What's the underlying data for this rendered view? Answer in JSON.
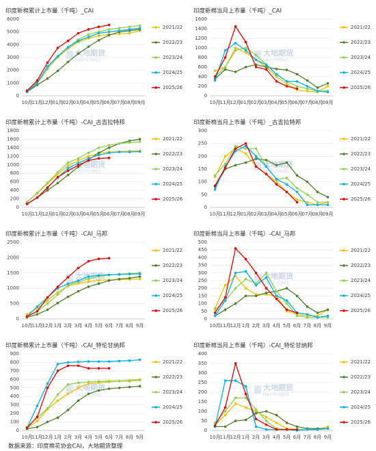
{
  "chart_data": [
    {
      "type": "line",
      "title": "印度新棉累计上市量（千吨）_CAI",
      "categories": [
        "10月",
        "11月",
        "12月",
        "01月",
        "02月",
        "03月",
        "04月",
        "05月",
        "06月",
        "07月",
        "08月",
        "09月"
      ],
      "ylim": [
        0,
        6000
      ],
      "yticks": [
        0,
        1000,
        2000,
        3000,
        4000,
        5000,
        6000
      ],
      "grid": true,
      "series": [
        {
          "name": "2021/22",
          "color": "#f0c000",
          "values": [
            400,
            1100,
            2200,
            3000,
            3700,
            4200,
            4500,
            4700,
            4800,
            4850,
            4900,
            5100
          ]
        },
        {
          "name": "2022/23",
          "color": "#4f7f2a",
          "values": [
            300,
            850,
            1350,
            1950,
            2650,
            3300,
            3850,
            4350,
            4750,
            5000,
            5100,
            5200
          ]
        },
        {
          "name": "2023/24",
          "color": "#92d050",
          "values": [
            400,
            1000,
            2100,
            3100,
            3800,
            4400,
            4800,
            5000,
            5200,
            5300,
            5400,
            5500
          ]
        },
        {
          "name": "2024/25",
          "color": "#00b0f0",
          "values": [
            300,
            1000,
            2300,
            3100,
            3800,
            4300,
            4600,
            4900,
            5000,
            5100,
            5200,
            5300
          ]
        },
        {
          "name": "2025/26",
          "color": "#e00000",
          "values": [
            400,
            1200,
            2600,
            3750,
            4300,
            4900,
            5200,
            5400,
            5550,
            null,
            null,
            null
          ]
        }
      ]
    },
    {
      "type": "line",
      "title": "印度新棉当月上市量（千吨）_CAI",
      "categories": [
        "10月",
        "11月",
        "12月",
        "01月",
        "02月",
        "03月",
        "04月",
        "05月",
        "06月",
        "07月",
        "08月",
        "09月"
      ],
      "ylim": [
        0,
        1600
      ],
      "yticks": [
        0,
        200,
        400,
        600,
        800,
        1000,
        1200,
        1400,
        1600
      ],
      "grid": true,
      "series": [
        {
          "name": "2021/22",
          "color": "#f0c000",
          "values": [
            520,
            600,
            1000,
            900,
            750,
            600,
            400,
            250,
            120,
            100,
            80,
            200
          ]
        },
        {
          "name": "2022/23",
          "color": "#4f7f2a",
          "values": [
            350,
            550,
            500,
            600,
            650,
            600,
            560,
            540,
            450,
            320,
            170,
            260
          ]
        },
        {
          "name": "2023/24",
          "color": "#92d050",
          "values": [
            400,
            600,
            950,
            1000,
            850,
            650,
            450,
            300,
            200,
            150,
            100,
            100
          ]
        },
        {
          "name": "2024/25",
          "color": "#00b0f0",
          "values": [
            320,
            950,
            1100,
            950,
            750,
            650,
            450,
            300,
            300,
            200,
            100,
            80
          ]
        },
        {
          "name": "2025/26",
          "color": "#e00000",
          "values": [
            400,
            800,
            1450,
            1120,
            600,
            550,
            300,
            200,
            150,
            null,
            null,
            null
          ]
        }
      ]
    },
    {
      "type": "line",
      "title": "印度新棉累计上市量（千吨）-CAI_古吉拉特邦",
      "categories": [
        "10月",
        "11月",
        "12月",
        "01月",
        "02月",
        "03月",
        "04月",
        "05月",
        "06月",
        "07月",
        "08月",
        "09月"
      ],
      "ylim": [
        0,
        1800
      ],
      "yticks": [
        0,
        200,
        400,
        600,
        800,
        1000,
        1200,
        1400,
        1600,
        1800
      ],
      "grid": true,
      "series": [
        {
          "name": "2021/22",
          "color": "#f0c000",
          "values": [
            130,
            330,
            560,
            780,
            980,
            1100,
            1200,
            1270,
            1300,
            1310,
            1320,
            1330
          ]
        },
        {
          "name": "2022/23",
          "color": "#4f7f2a",
          "values": [
            80,
            230,
            400,
            570,
            760,
            950,
            1120,
            1280,
            1400,
            1500,
            1560,
            1600
          ]
        },
        {
          "name": "2023/24",
          "color": "#92d050",
          "values": [
            120,
            340,
            580,
            820,
            1050,
            1150,
            1280,
            1400,
            1460,
            1500,
            1520,
            1540
          ]
        },
        {
          "name": "2024/25",
          "color": "#00b0f0",
          "values": [
            80,
            230,
            470,
            700,
            920,
            1040,
            1150,
            1230,
            1280,
            1300,
            1300,
            1310
          ]
        },
        {
          "name": "2025/26",
          "color": "#e00000",
          "values": [
            80,
            230,
            460,
            710,
            860,
            990,
            1100,
            1150,
            1160,
            null,
            null,
            null
          ]
        }
      ]
    },
    {
      "type": "line",
      "title": "印度新棉当月上市量（千吨）_古吉拉特邦",
      "categories": [
        "10月",
        "11月",
        "12月",
        "01月",
        "02月",
        "03月",
        "04月",
        "05月",
        "06月",
        "07月",
        "08月",
        "09月"
      ],
      "ylim": [
        0,
        300
      ],
      "yticks": [
        0,
        50,
        100,
        150,
        200,
        250,
        300
      ],
      "grid": true,
      "series": [
        {
          "name": "2021/22",
          "color": "#f0c000",
          "values": [
            120,
            200,
            230,
            210,
            160,
            130,
            100,
            60,
            30,
            20,
            10,
            20
          ]
        },
        {
          "name": "2022/23",
          "color": "#4f7f2a",
          "values": [
            80,
            150,
            165,
            175,
            190,
            185,
            165,
            175,
            125,
            100,
            60,
            40
          ]
        },
        {
          "name": "2023/24",
          "color": "#92d050",
          "values": [
            125,
            170,
            240,
            230,
            230,
            160,
            110,
            115,
            75,
            50,
            20,
            20
          ]
        },
        {
          "name": "2024/25",
          "color": "#00b0f0",
          "values": [
            70,
            160,
            220,
            240,
            200,
            160,
            110,
            90,
            60,
            10,
            10,
            10
          ]
        },
        {
          "name": "2025/26",
          "color": "#e00000",
          "values": [
            85,
            155,
            230,
            250,
            160,
            130,
            90,
            60,
            20,
            null,
            null,
            null
          ]
        }
      ]
    },
    {
      "type": "line",
      "title": "印度新棉累计上市量（千吨）-CAI_马邦",
      "categories": [
        "10月",
        "11月",
        "12月",
        "1月",
        "2月",
        "3月",
        "4月",
        "5月",
        "6月",
        "7月",
        "8月",
        "9月"
      ],
      "ylim": [
        0,
        2500
      ],
      "yticks": [
        0,
        500,
        1000,
        1500,
        2000,
        2500
      ],
      "grid": true,
      "series": [
        {
          "name": "2021/22",
          "color": "#f0c000",
          "values": [
            150,
            350,
            600,
            870,
            1070,
            1160,
            1220,
            1260,
            1270,
            1280,
            1290,
            1300
          ]
        },
        {
          "name": "2022/23",
          "color": "#4f7f2a",
          "values": [
            50,
            150,
            300,
            520,
            720,
            900,
            1050,
            1150,
            1250,
            1300,
            1330,
            1380
          ]
        },
        {
          "name": "2023/24",
          "color": "#92d050",
          "values": [
            70,
            250,
            500,
            790,
            1100,
            1210,
            1300,
            1390,
            1430,
            1460,
            1480,
            1500
          ]
        },
        {
          "name": "2024/25",
          "color": "#00b0f0",
          "values": [
            80,
            400,
            700,
            1000,
            1150,
            1250,
            1380,
            1420,
            1440,
            1450,
            1460,
            1470
          ]
        },
        {
          "name": "2025/26",
          "color": "#e00000",
          "values": [
            80,
            250,
            700,
            1050,
            1360,
            1660,
            1880,
            1960,
            1980,
            null,
            null,
            null
          ]
        }
      ]
    },
    {
      "type": "line",
      "title": "印度新棉当月上市量（千吨）-CAI_马邦",
      "categories": [
        "10月",
        "11月",
        "12月",
        "1月",
        "2月",
        "3月",
        "4月",
        "5月",
        "6月",
        "7月",
        "8月",
        "9月"
      ],
      "ylim": [
        0,
        500
      ],
      "yticks": [
        0,
        50,
        100,
        150,
        200,
        250,
        300,
        350,
        400,
        450,
        500
      ],
      "grid": true,
      "series": [
        {
          "name": "2021/22",
          "color": "#f0c000",
          "values": [
            70,
            220,
            280,
            200,
            160,
            160,
            150,
            50,
            30,
            20,
            20,
            60
          ]
        },
        {
          "name": "2022/23",
          "color": "#4f7f2a",
          "values": [
            20,
            60,
            100,
            150,
            150,
            170,
            180,
            200,
            150,
            80,
            40,
            60
          ]
        },
        {
          "name": "2023/24",
          "color": "#92d050",
          "values": [
            60,
            120,
            200,
            260,
            230,
            300,
            180,
            100,
            20,
            10,
            10,
            10
          ]
        },
        {
          "name": "2024/25",
          "color": "#00b0f0",
          "values": [
            20,
            120,
            300,
            310,
            220,
            270,
            150,
            120,
            40,
            30,
            10,
            20
          ]
        },
        {
          "name": "2025/26",
          "color": "#e00000",
          "values": [
            40,
            140,
            460,
            390,
            300,
            200,
            130,
            60,
            40,
            null,
            null,
            null
          ]
        }
      ]
    },
    {
      "type": "line",
      "title": "印度新棉累计上市量（千吨）-CAI_特伦甘纳邦",
      "categories": [
        "10月",
        "11月",
        "12月",
        "1月",
        "2月",
        "3月",
        "4月",
        "5月",
        "6月",
        "7月",
        "8月",
        "9月"
      ],
      "ylim": [
        0,
        900
      ],
      "yticks": [
        0,
        100,
        200,
        300,
        400,
        500,
        600,
        700,
        800,
        900
      ],
      "grid": true,
      "series": [
        {
          "name": "2021/22",
          "color": "#f0c000",
          "values": [
            30,
            110,
            250,
            350,
            430,
            500,
            550,
            560,
            570,
            580,
            590,
            600
          ]
        },
        {
          "name": "2022/23",
          "color": "#4f7f2a",
          "values": [
            20,
            40,
            100,
            150,
            240,
            350,
            430,
            470,
            490,
            500,
            510,
            520
          ]
        },
        {
          "name": "2023/24",
          "color": "#92d050",
          "values": [
            40,
            150,
            260,
            420,
            540,
            560,
            570,
            575,
            580,
            580,
            580,
            590
          ]
        },
        {
          "name": "2024/25",
          "color": "#00b0f0",
          "values": [
            30,
            290,
            550,
            780,
            800,
            805,
            810,
            810,
            810,
            815,
            820,
            830
          ]
        },
        {
          "name": "2025/26",
          "color": "#e00000",
          "values": [
            30,
            160,
            500,
            700,
            760,
            760,
            730,
            730,
            730,
            null,
            null,
            null
          ]
        }
      ]
    },
    {
      "type": "line",
      "title": "印度新棉当月上市量（千吨）-CAI_特伦甘纳邦",
      "categories": [
        "10月",
        "11月",
        "12月",
        "1月",
        "2月",
        "3月",
        "4月",
        "5月",
        "6月",
        "7月",
        "8月",
        "9月"
      ],
      "ylim": [
        0,
        400
      ],
      "yticks": [
        0,
        50,
        100,
        150,
        200,
        250,
        300,
        350,
        400
      ],
      "grid": true,
      "series": [
        {
          "name": "2021/22",
          "color": "#f0c000",
          "values": [
            30,
            80,
            140,
            120,
            100,
            70,
            40,
            10,
            5,
            5,
            5,
            20
          ]
        },
        {
          "name": "2022/23",
          "color": "#4f7f2a",
          "values": [
            20,
            20,
            50,
            55,
            90,
            100,
            80,
            40,
            20,
            10,
            10,
            10
          ]
        },
        {
          "name": "2023/24",
          "color": "#92d050",
          "values": [
            40,
            100,
            170,
            170,
            110,
            50,
            10,
            5,
            5,
            5,
            5,
            10
          ]
        },
        {
          "name": "2024/25",
          "color": "#00b0f0",
          "values": [
            20,
            260,
            260,
            230,
            20,
            5,
            5,
            5,
            0,
            5,
            5,
            10
          ]
        },
        {
          "name": "2025/26",
          "color": "#e00000",
          "values": [
            25,
            120,
            350,
            190,
            60,
            30,
            5,
            5,
            5,
            null,
            null,
            null
          ]
        }
      ]
    }
  ],
  "watermark": {
    "name": "大地期货",
    "sub": "DADI FUTURES"
  },
  "footer": "数据来源：印度棉花协会CAI，大地期货整理"
}
